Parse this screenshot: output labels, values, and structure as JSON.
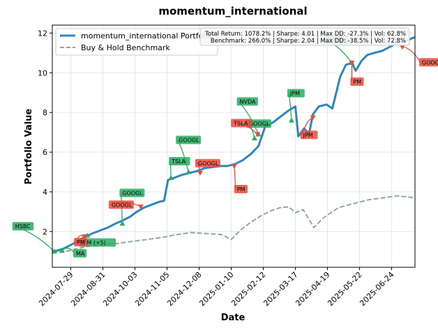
{
  "chart_data": {
    "type": "line",
    "title": "momentum_international",
    "xlabel": "Date",
    "ylabel": "Portfolio Value",
    "x_ticks": [
      "2024-07-29",
      "2024-08-31",
      "2024-10-03",
      "2024-11-05",
      "2024-12-08",
      "2025-01-10",
      "2025-02-12",
      "2025-03-17",
      "2025-04-19",
      "2025-05-22",
      "2025-06-24"
    ],
    "xlim": [
      "2024-07-10",
      "2025-07-18"
    ],
    "ylim": [
      0.2,
      12.4
    ],
    "y_ticks": [
      2,
      4,
      6,
      8,
      10,
      12
    ],
    "grid": true,
    "legend_position": "top-left",
    "colors": {
      "portfolio": "#2e86c1",
      "benchmark": "#95a5a6",
      "buy": "#27ae60",
      "sell": "#e74c3c"
    },
    "series": [
      {
        "name": "momentum_international Portfolio",
        "style": "solid",
        "points": [
          [
            "2024-07-10",
            1.0
          ],
          [
            "2024-07-16",
            1.05
          ],
          [
            "2024-07-22",
            1.15
          ],
          [
            "2024-07-28",
            1.3
          ],
          [
            "2024-08-05",
            1.5
          ],
          [
            "2024-08-12",
            1.7
          ],
          [
            "2024-08-20",
            1.9
          ],
          [
            "2024-08-28",
            2.05
          ],
          [
            "2024-09-05",
            2.2
          ],
          [
            "2024-09-13",
            2.4
          ],
          [
            "2024-09-20",
            2.55
          ],
          [
            "2024-09-28",
            2.75
          ],
          [
            "2024-10-05",
            3.0
          ],
          [
            "2024-10-12",
            3.2
          ],
          [
            "2024-10-20",
            3.35
          ],
          [
            "2024-10-28",
            3.5
          ],
          [
            "2024-11-02",
            3.55
          ],
          [
            "2024-11-06",
            4.6
          ],
          [
            "2024-11-12",
            4.7
          ],
          [
            "2024-11-20",
            4.85
          ],
          [
            "2024-11-28",
            4.95
          ],
          [
            "2024-12-06",
            5.05
          ],
          [
            "2024-12-14",
            5.2
          ],
          [
            "2024-12-22",
            5.25
          ],
          [
            "2024-12-30",
            5.3
          ],
          [
            "2025-01-06",
            5.3
          ],
          [
            "2025-01-14",
            5.4
          ],
          [
            "2025-01-22",
            5.6
          ],
          [
            "2025-01-30",
            5.9
          ],
          [
            "2025-02-07",
            6.3
          ],
          [
            "2025-02-14",
            7.3
          ],
          [
            "2025-02-22",
            7.5
          ],
          [
            "2025-03-02",
            7.8
          ],
          [
            "2025-03-10",
            8.1
          ],
          [
            "2025-03-17",
            8.3
          ],
          [
            "2025-03-20",
            6.8
          ],
          [
            "2025-03-26",
            7.2
          ],
          [
            "2025-03-31",
            6.9
          ],
          [
            "2025-04-04",
            7.9
          ],
          [
            "2025-04-10",
            8.3
          ],
          [
            "2025-04-18",
            8.4
          ],
          [
            "2025-04-24",
            8.2
          ],
          [
            "2025-05-02",
            9.8
          ],
          [
            "2025-05-08",
            10.4
          ],
          [
            "2025-05-14",
            10.5
          ],
          [
            "2025-05-18",
            10.1
          ],
          [
            "2025-05-24",
            10.6
          ],
          [
            "2025-05-30",
            10.9
          ],
          [
            "2025-06-06",
            11.0
          ],
          [
            "2025-06-14",
            11.1
          ],
          [
            "2025-06-22",
            11.3
          ],
          [
            "2025-06-30",
            11.5
          ],
          [
            "2025-07-08",
            11.6
          ],
          [
            "2025-07-18",
            11.8
          ]
        ]
      },
      {
        "name": "Buy & Hold Benchmark",
        "style": "dashed",
        "points": [
          [
            "2024-07-10",
            1.0
          ],
          [
            "2024-07-20",
            0.95
          ],
          [
            "2024-08-01",
            1.1
          ],
          [
            "2024-08-15",
            1.25
          ],
          [
            "2024-08-31",
            1.35
          ],
          [
            "2024-09-15",
            1.4
          ],
          [
            "2024-09-30",
            1.5
          ],
          [
            "2024-10-15",
            1.6
          ],
          [
            "2024-10-31",
            1.7
          ],
          [
            "2024-11-15",
            1.85
          ],
          [
            "2024-11-30",
            1.95
          ],
          [
            "2024-12-15",
            1.9
          ],
          [
            "2024-12-31",
            1.85
          ],
          [
            "2025-01-10",
            1.6
          ],
          [
            "2025-01-20",
            2.1
          ],
          [
            "2025-01-31",
            2.5
          ],
          [
            "2025-02-10",
            2.8
          ],
          [
            "2025-02-20",
            3.05
          ],
          [
            "2025-03-01",
            3.2
          ],
          [
            "2025-03-10",
            3.25
          ],
          [
            "2025-03-17",
            2.95
          ],
          [
            "2025-03-25",
            3.1
          ],
          [
            "2025-04-05",
            2.2
          ],
          [
            "2025-04-15",
            2.7
          ],
          [
            "2025-04-30",
            3.2
          ],
          [
            "2025-05-15",
            3.4
          ],
          [
            "2025-05-31",
            3.6
          ],
          [
            "2025-06-15",
            3.7
          ],
          [
            "2025-06-30",
            3.8
          ],
          [
            "2025-07-18",
            3.7
          ]
        ]
      }
    ],
    "stats": {
      "line1": "Total Return: 1078.2% | Sharpe: 4.01 | Max DD: -27.3% | Vol: 62.8%",
      "line2": "Benchmark: 266.0% | Sharpe: 2.04 | Max DD: -38.5% | Vol: 72.8%"
    },
    "annotations": [
      {
        "label": "HSBC",
        "kind": "buy",
        "date": "2024-07-12",
        "value": 1.0
      },
      {
        "label": "MA",
        "kind": "buy",
        "date": "2024-07-20",
        "value": 1.05
      },
      {
        "label": "JPM (+5)",
        "kind": "buy",
        "date": "2024-08-15",
        "value": 1.8
      },
      {
        "label": "PM",
        "kind": "sell",
        "date": "2024-08-12",
        "value": 1.75
      },
      {
        "label": "GOOGL",
        "kind": "buy",
        "date": "2024-09-20",
        "value": 2.4
      },
      {
        "label": "GOOGL",
        "kind": "sell",
        "date": "2024-10-09",
        "value": 3.25
      },
      {
        "label": "TSLA",
        "kind": "buy",
        "date": "2024-11-09",
        "value": 4.7
      },
      {
        "label": "GOOGL",
        "kind": "buy",
        "date": "2024-11-27",
        "value": 5.0
      },
      {
        "label": "GOOGL",
        "kind": "sell",
        "date": "2024-12-09",
        "value": 4.95
      },
      {
        "label": "PM",
        "kind": "sell",
        "date": "2025-01-13",
        "value": 5.3
      },
      {
        "label": "NVDA",
        "kind": "buy",
        "date": "2025-02-07",
        "value": 6.9
      },
      {
        "label": "GOOGL",
        "kind": "buy",
        "date": "2025-02-03",
        "value": 6.7
      },
      {
        "label": "TSLA",
        "kind": "sell",
        "date": "2025-02-06",
        "value": 6.9
      },
      {
        "label": "JPM",
        "kind": "buy",
        "date": "2025-03-13",
        "value": 7.6
      },
      {
        "label": "JPM",
        "kind": "sell",
        "date": "2025-04-04",
        "value": 7.75
      },
      {
        "label": "GOOGL",
        "kind": "buy",
        "date": "2025-05-14",
        "value": 10.5
      },
      {
        "label": "PM",
        "kind": "sell",
        "date": "2025-05-14",
        "value": 10.5
      },
      {
        "label": "GOOGL",
        "kind": "sell",
        "date": "2025-07-05",
        "value": 11.3
      }
    ]
  }
}
